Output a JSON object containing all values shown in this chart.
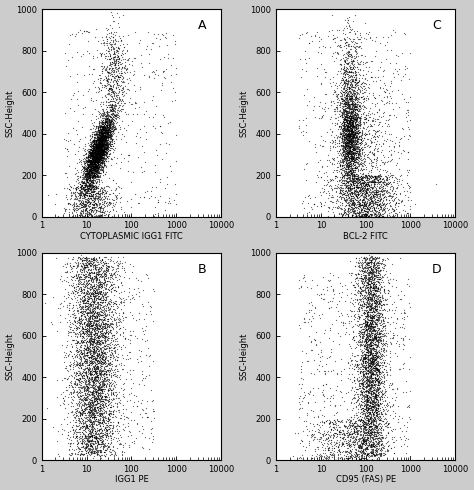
{
  "panels": [
    {
      "label": "A",
      "xlabel": "CYTOPLASMIC IGG1 FITC",
      "ylabel": "SSC-Height"
    },
    {
      "label": "C",
      "xlabel": "BCL-2 FITC",
      "ylabel": "SSC-Height"
    },
    {
      "label": "B",
      "xlabel": "IGG1 PE",
      "ylabel": "SSC-Height"
    },
    {
      "label": "D",
      "xlabel": "CD95 (FAS) PE",
      "ylabel": "SSC-Height"
    }
  ],
  "n_points": 5000,
  "xlim_log": [
    0,
    4
  ],
  "ylim": [
    0,
    1000
  ],
  "yticks": [
    0,
    200,
    400,
    600,
    800,
    1000
  ],
  "xtick_powers": [
    0,
    1,
    2,
    3,
    4
  ],
  "dot_size": 0.8,
  "dot_color": "#000000",
  "dot_alpha": 0.6,
  "bg_color": "#ffffff",
  "fig_bg_color": "#cccccc",
  "label_fontsize": 6,
  "tick_fontsize": 6,
  "panel_label_fontsize": 9
}
